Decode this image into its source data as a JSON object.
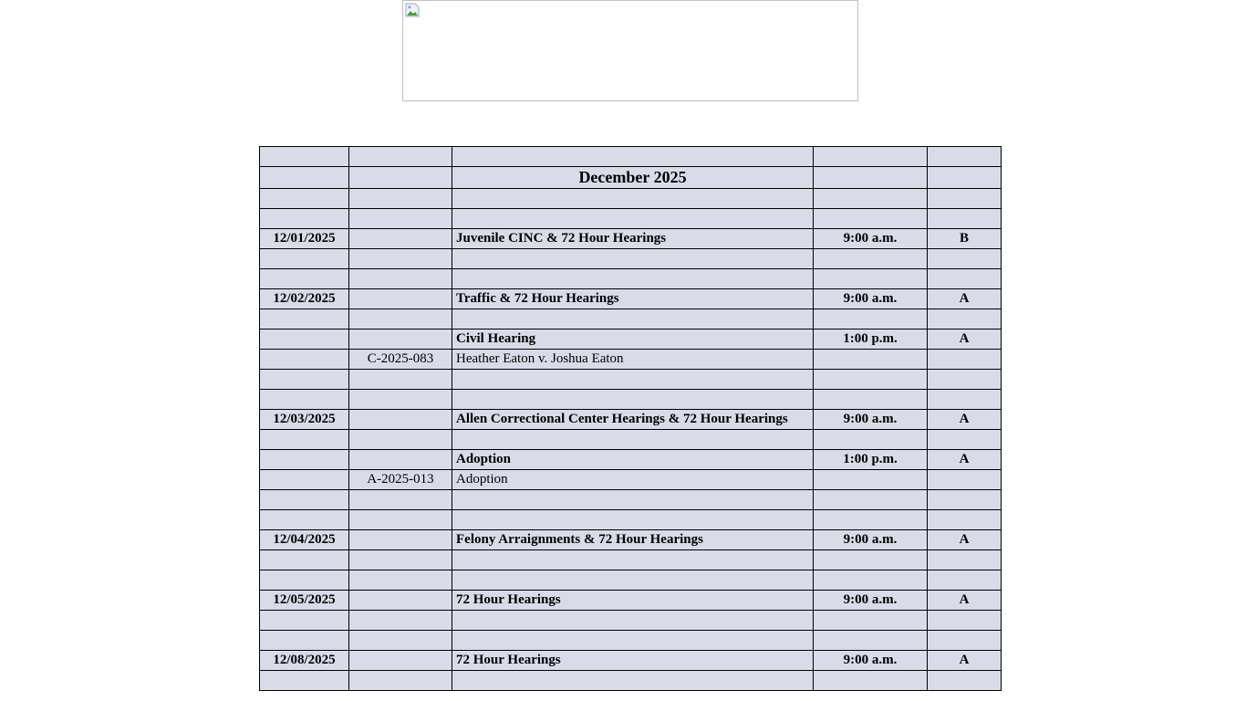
{
  "banner": {
    "alt": "",
    "icon": "broken-image-icon"
  },
  "schedule": {
    "title": "December 2025",
    "rows": [
      {
        "date": "",
        "case": "",
        "desc": "",
        "time": "",
        "court": ""
      },
      {
        "date": "",
        "case": "",
        "desc": "December 2025",
        "time": "",
        "court": "",
        "title": true
      },
      {
        "date": "",
        "case": "",
        "desc": "",
        "time": "",
        "court": ""
      },
      {
        "date": "",
        "case": "",
        "desc": "",
        "time": "",
        "court": ""
      },
      {
        "date": "12/01/2025",
        "case": "",
        "desc": "Juvenile CINC & 72 Hour Hearings",
        "time": "9:00 a.m.",
        "court": "B",
        "bold": true
      },
      {
        "date": "",
        "case": "",
        "desc": "",
        "time": "",
        "court": ""
      },
      {
        "date": "",
        "case": "",
        "desc": "",
        "time": "",
        "court": ""
      },
      {
        "date": "12/02/2025",
        "case": "",
        "desc": "Traffic & 72 Hour Hearings",
        "time": "9:00 a.m.",
        "court": "A",
        "bold": true
      },
      {
        "date": "",
        "case": "",
        "desc": "",
        "time": "",
        "court": ""
      },
      {
        "date": "",
        "case": "",
        "desc": "Civil Hearing",
        "time": "1:00 p.m.",
        "court": "A",
        "bold": true
      },
      {
        "date": "",
        "case": "C-2025-083",
        "desc": "Heather Eaton v. Joshua Eaton",
        "time": "",
        "court": ""
      },
      {
        "date": "",
        "case": "",
        "desc": "",
        "time": "",
        "court": ""
      },
      {
        "date": "",
        "case": "",
        "desc": "",
        "time": "",
        "court": ""
      },
      {
        "date": "12/03/2025",
        "case": "",
        "desc": "Allen Correctional Center Hearings & 72 Hour Hearings",
        "time": "9:00 a.m.",
        "court": "A",
        "bold": true
      },
      {
        "date": "",
        "case": "",
        "desc": "",
        "time": "",
        "court": ""
      },
      {
        "date": "",
        "case": "",
        "desc": "Adoption",
        "time": "1:00 p.m.",
        "court": "A",
        "bold": true
      },
      {
        "date": "",
        "case": "A-2025-013",
        "desc": "Adoption",
        "time": "",
        "court": ""
      },
      {
        "date": "",
        "case": "",
        "desc": "",
        "time": "",
        "court": ""
      },
      {
        "date": "",
        "case": "",
        "desc": "",
        "time": "",
        "court": ""
      },
      {
        "date": "12/04/2025",
        "case": "",
        "desc": "Felony Arraignments & 72 Hour Hearings",
        "time": "9:00 a.m.",
        "court": "A",
        "bold": true
      },
      {
        "date": "",
        "case": "",
        "desc": "",
        "time": "",
        "court": ""
      },
      {
        "date": "",
        "case": "",
        "desc": "",
        "time": "",
        "court": ""
      },
      {
        "date": "12/05/2025",
        "case": "",
        "desc": "72 Hour Hearings",
        "time": "9:00 a.m.",
        "court": "A",
        "bold": true
      },
      {
        "date": "",
        "case": "",
        "desc": "",
        "time": "",
        "court": ""
      },
      {
        "date": "",
        "case": "",
        "desc": "",
        "time": "",
        "court": ""
      },
      {
        "date": "12/08/2025",
        "case": "",
        "desc": "72 Hour Hearings",
        "time": "9:00 a.m.",
        "court": "A",
        "bold": true
      },
      {
        "date": "",
        "case": "",
        "desc": "",
        "time": "",
        "court": ""
      }
    ]
  },
  "colors": {
    "cell_bg": "#d9dce8",
    "border": "#000000"
  }
}
